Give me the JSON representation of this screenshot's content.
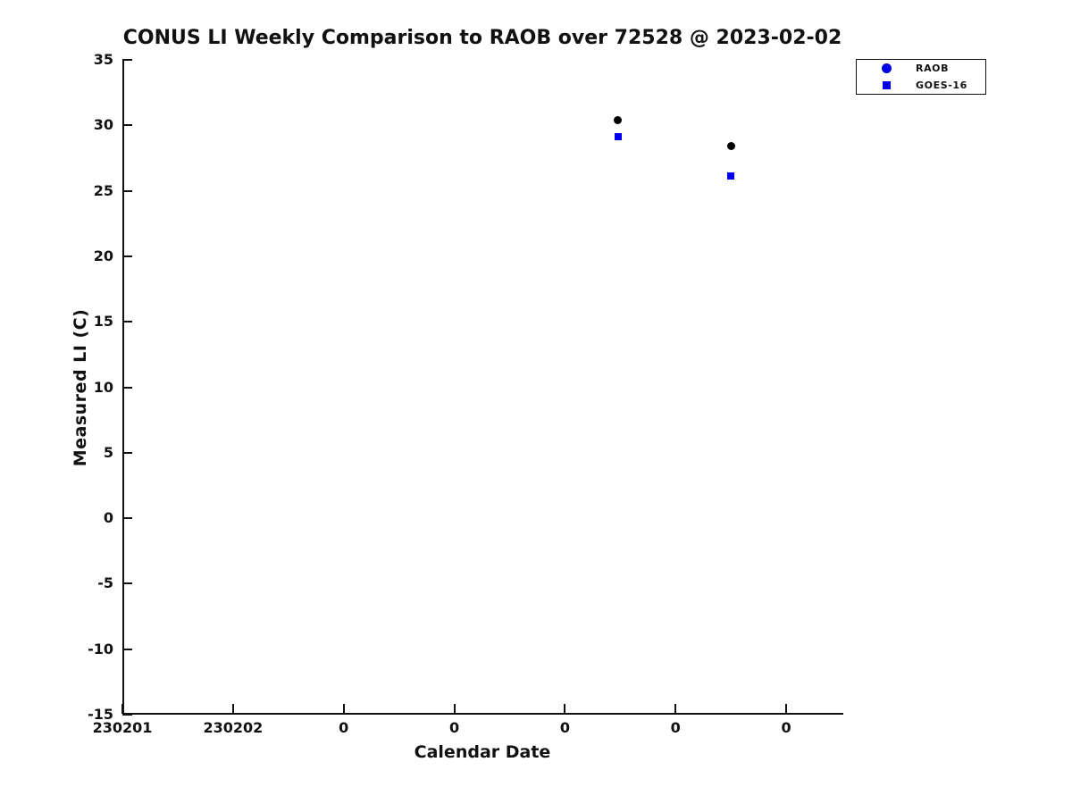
{
  "colors": {
    "ink": "#111111",
    "accent_blue": "#0000EE",
    "legend_marker_edge": "#0000B8",
    "raob_data_marker": "#000000"
  },
  "chart_data": {
    "type": "scatter",
    "title": "CONUS LI Weekly Comparison to RAOB over 72528 @ 2023-02-02",
    "xlabel": "Calendar Date",
    "ylabel": "Measured LI (C)",
    "x_tick_labels": [
      "230201",
      "230202",
      "0",
      "0",
      "0",
      "0",
      "0"
    ],
    "y_ticks": [
      35,
      30,
      25,
      20,
      15,
      10,
      5,
      0,
      -5,
      -10,
      -15
    ],
    "ylim": [
      -15,
      35
    ],
    "grid": false,
    "legend_position": "outside-top-right",
    "series": [
      {
        "name": "RAOB",
        "marker": "circle",
        "legend_color": "#0000EE",
        "data_color": "#000000",
        "points": [
          {
            "x_tick": 4.48,
            "y": 30.4
          },
          {
            "x_tick": 5.5,
            "y": 28.4
          }
        ]
      },
      {
        "name": "GOES-16",
        "marker": "square",
        "legend_color": "#0000EE",
        "data_color": "#0000EE",
        "points": [
          {
            "x_tick": 4.48,
            "y": 29.1
          },
          {
            "x_tick": 5.5,
            "y": 26.1
          }
        ]
      }
    ]
  }
}
